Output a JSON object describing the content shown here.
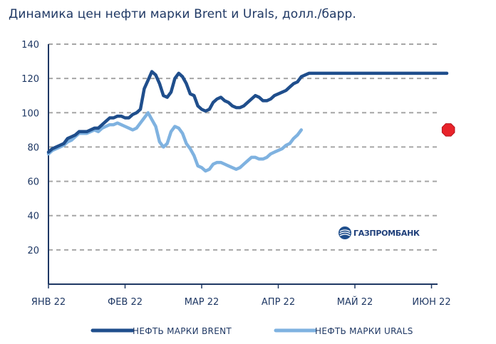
{
  "chart_data": {
    "type": "line",
    "title": "Динамика цен нефти марки Brent и Urals, долл./барр.",
    "xlabel": "",
    "ylabel": "",
    "ylim": [
      0,
      140
    ],
    "y_ticks": [
      "20",
      "40",
      "60",
      "80",
      "100",
      "120",
      "140"
    ],
    "x_ticks": [
      "ЯНВ 22",
      "ФЕВ 22",
      "МАР 22",
      "АПР 22",
      "МАЙ 22",
      "ИЮН 22"
    ],
    "xlim": [
      0,
      5.25
    ],
    "grid": "horizontal-dashed",
    "legend_position": "bottom",
    "series": [
      {
        "name": "НЕФТЬ МАРКИ BRENT",
        "color": "#1f4e8c",
        "x": [
          0,
          0.05,
          0.1,
          0.15,
          0.2,
          0.25,
          0.3,
          0.35,
          0.4,
          0.45,
          0.5,
          0.55,
          0.6,
          0.65,
          0.7,
          0.75,
          0.8,
          0.85,
          0.9,
          0.95,
          1.0,
          1.05,
          1.1,
          1.15,
          1.2,
          1.25,
          1.3,
          1.35,
          1.4,
          1.45,
          1.5,
          1.55,
          1.6,
          1.65,
          1.7,
          1.75,
          1.8,
          1.85,
          1.9,
          1.95,
          2.0,
          2.05,
          2.1,
          2.15,
          2.2,
          2.25,
          2.3,
          2.35,
          2.4,
          2.45,
          2.5,
          2.55,
          2.6,
          2.65,
          2.7,
          2.75,
          2.8,
          2.85,
          2.9,
          2.95,
          3.0,
          3.05,
          3.1,
          3.15,
          3.2,
          3.25,
          3.3,
          3.35,
          3.4,
          3.45,
          3.5,
          3.55,
          3.6,
          3.65,
          3.7,
          3.75,
          3.8,
          3.85,
          3.9,
          3.95,
          4.0,
          4.05,
          4.1,
          4.15,
          4.2,
          4.25,
          4.3,
          4.35,
          4.4,
          4.45,
          4.5,
          4.55,
          4.6,
          4.65,
          4.7,
          4.75,
          4.8,
          4.85,
          4.9,
          4.95,
          5.0,
          5.05,
          5.1,
          5.15,
          5.2
        ],
        "values": [
          77,
          79,
          80,
          81,
          82,
          85,
          86,
          87,
          89,
          89,
          89,
          90,
          91,
          91,
          93,
          95,
          97,
          97,
          98,
          98,
          97,
          97,
          99,
          100,
          102,
          114,
          119,
          124,
          122,
          117,
          110,
          109,
          112,
          120,
          123,
          121,
          117,
          111,
          110,
          104,
          102,
          101,
          102,
          106,
          108,
          109,
          107,
          106,
          104,
          103,
          103,
          104,
          106,
          108,
          110,
          109,
          107,
          107,
          108,
          110,
          111,
          112,
          113,
          115,
          117,
          118,
          121,
          122,
          123,
          123,
          123,
          123,
          123,
          123,
          123,
          123,
          123,
          123,
          123,
          123,
          123,
          123,
          123,
          123,
          123,
          123,
          123,
          123,
          123,
          123,
          123,
          123,
          123,
          123,
          123,
          123,
          123,
          123,
          123,
          123,
          123,
          123,
          123,
          123,
          123
        ]
      },
      {
        "name": "НЕФТЬ МАРКИ URALS",
        "color": "#7fb2e0",
        "x": [
          0,
          0.05,
          0.1,
          0.15,
          0.2,
          0.25,
          0.3,
          0.35,
          0.4,
          0.45,
          0.5,
          0.55,
          0.6,
          0.65,
          0.7,
          0.75,
          0.8,
          0.85,
          0.9,
          0.95,
          1.0,
          1.05,
          1.1,
          1.15,
          1.2,
          1.25,
          1.3,
          1.35,
          1.4,
          1.45,
          1.5,
          1.55,
          1.6,
          1.65,
          1.7,
          1.75,
          1.8,
          1.85,
          1.9,
          1.95,
          2.0,
          2.05,
          2.1,
          2.15,
          2.2,
          2.25,
          2.3,
          2.35,
          2.4,
          2.45,
          2.5,
          2.55,
          2.6,
          2.65,
          2.7,
          2.75,
          2.8,
          2.85,
          2.9,
          2.95,
          3.0,
          3.05,
          3.1,
          3.15,
          3.2,
          3.25,
          3.3
        ],
        "values": [
          76,
          78,
          79,
          80,
          81,
          83,
          84,
          86,
          88,
          88,
          88,
          89,
          90,
          89,
          91,
          92,
          93,
          93,
          94,
          93,
          92,
          91,
          90,
          91,
          94,
          97,
          100,
          96,
          92,
          83,
          80,
          82,
          89,
          92,
          91,
          88,
          82,
          79,
          75,
          69,
          68,
          66,
          67,
          70,
          71,
          71,
          70,
          69,
          68,
          67,
          68,
          70,
          72,
          74,
          74,
          73,
          73,
          74,
          76,
          77,
          78,
          79,
          81,
          82,
          85,
          87,
          90
        ]
      }
    ],
    "end_marker": {
      "series": "НЕФТЬ МАРКИ URALS",
      "x": 5.22,
      "y": 90,
      "color": "#e8232a"
    },
    "logo_text": "ГАЗПРОМБАНК"
  },
  "colors": {
    "axis": "#1f3864",
    "grid": "#a6a6a6",
    "text": "#1f3864"
  }
}
